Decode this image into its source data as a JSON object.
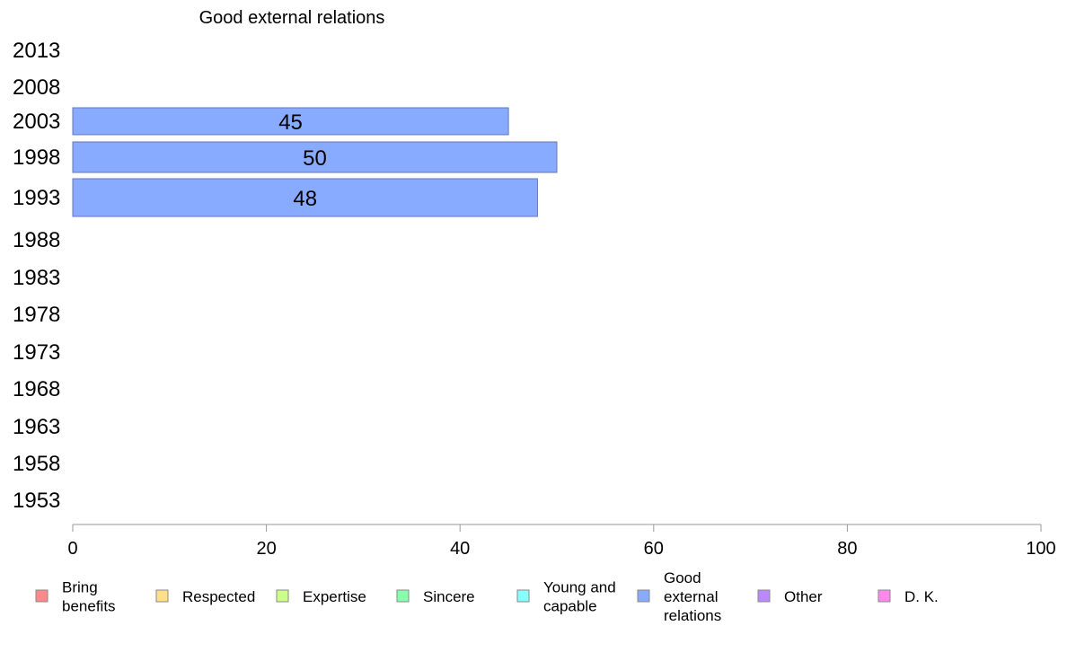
{
  "chart_data": {
    "type": "bar",
    "orientation": "horizontal",
    "title": "Good external relations",
    "categories": [
      "2013",
      "2008",
      "2003",
      "1998",
      "1993",
      "1988",
      "1983",
      "1978",
      "1973",
      "1968",
      "1963",
      "1958",
      "1953"
    ],
    "series": [
      {
        "name": "Good external relations",
        "values": [
          null,
          null,
          45,
          50,
          48,
          null,
          null,
          null,
          null,
          null,
          null,
          null,
          null
        ],
        "color": "#88aaff"
      }
    ],
    "xlim": [
      0,
      100
    ],
    "xticks": [
      0,
      20,
      40,
      60,
      80,
      100
    ],
    "xlabel": "",
    "ylabel": "",
    "grid": false,
    "legend_position": "bottom",
    "legend": [
      {
        "lines": [
          "Bring",
          "benefits"
        ],
        "color": "#ff8888"
      },
      {
        "lines": [
          "Respected"
        ],
        "color": "#ffe088"
      },
      {
        "lines": [
          "Expertise"
        ],
        "color": "#ccff88"
      },
      {
        "lines": [
          "Sincere"
        ],
        "color": "#88ffaa"
      },
      {
        "lines": [
          "Young and",
          "capable"
        ],
        "color": "#88ffff"
      },
      {
        "lines": [
          "Good",
          "external",
          "relations"
        ],
        "color": "#88aaff"
      },
      {
        "lines": [
          "Other"
        ],
        "color": "#bb88ff"
      },
      {
        "lines": [
          "D. K."
        ],
        "color": "#ff88ee"
      }
    ]
  }
}
